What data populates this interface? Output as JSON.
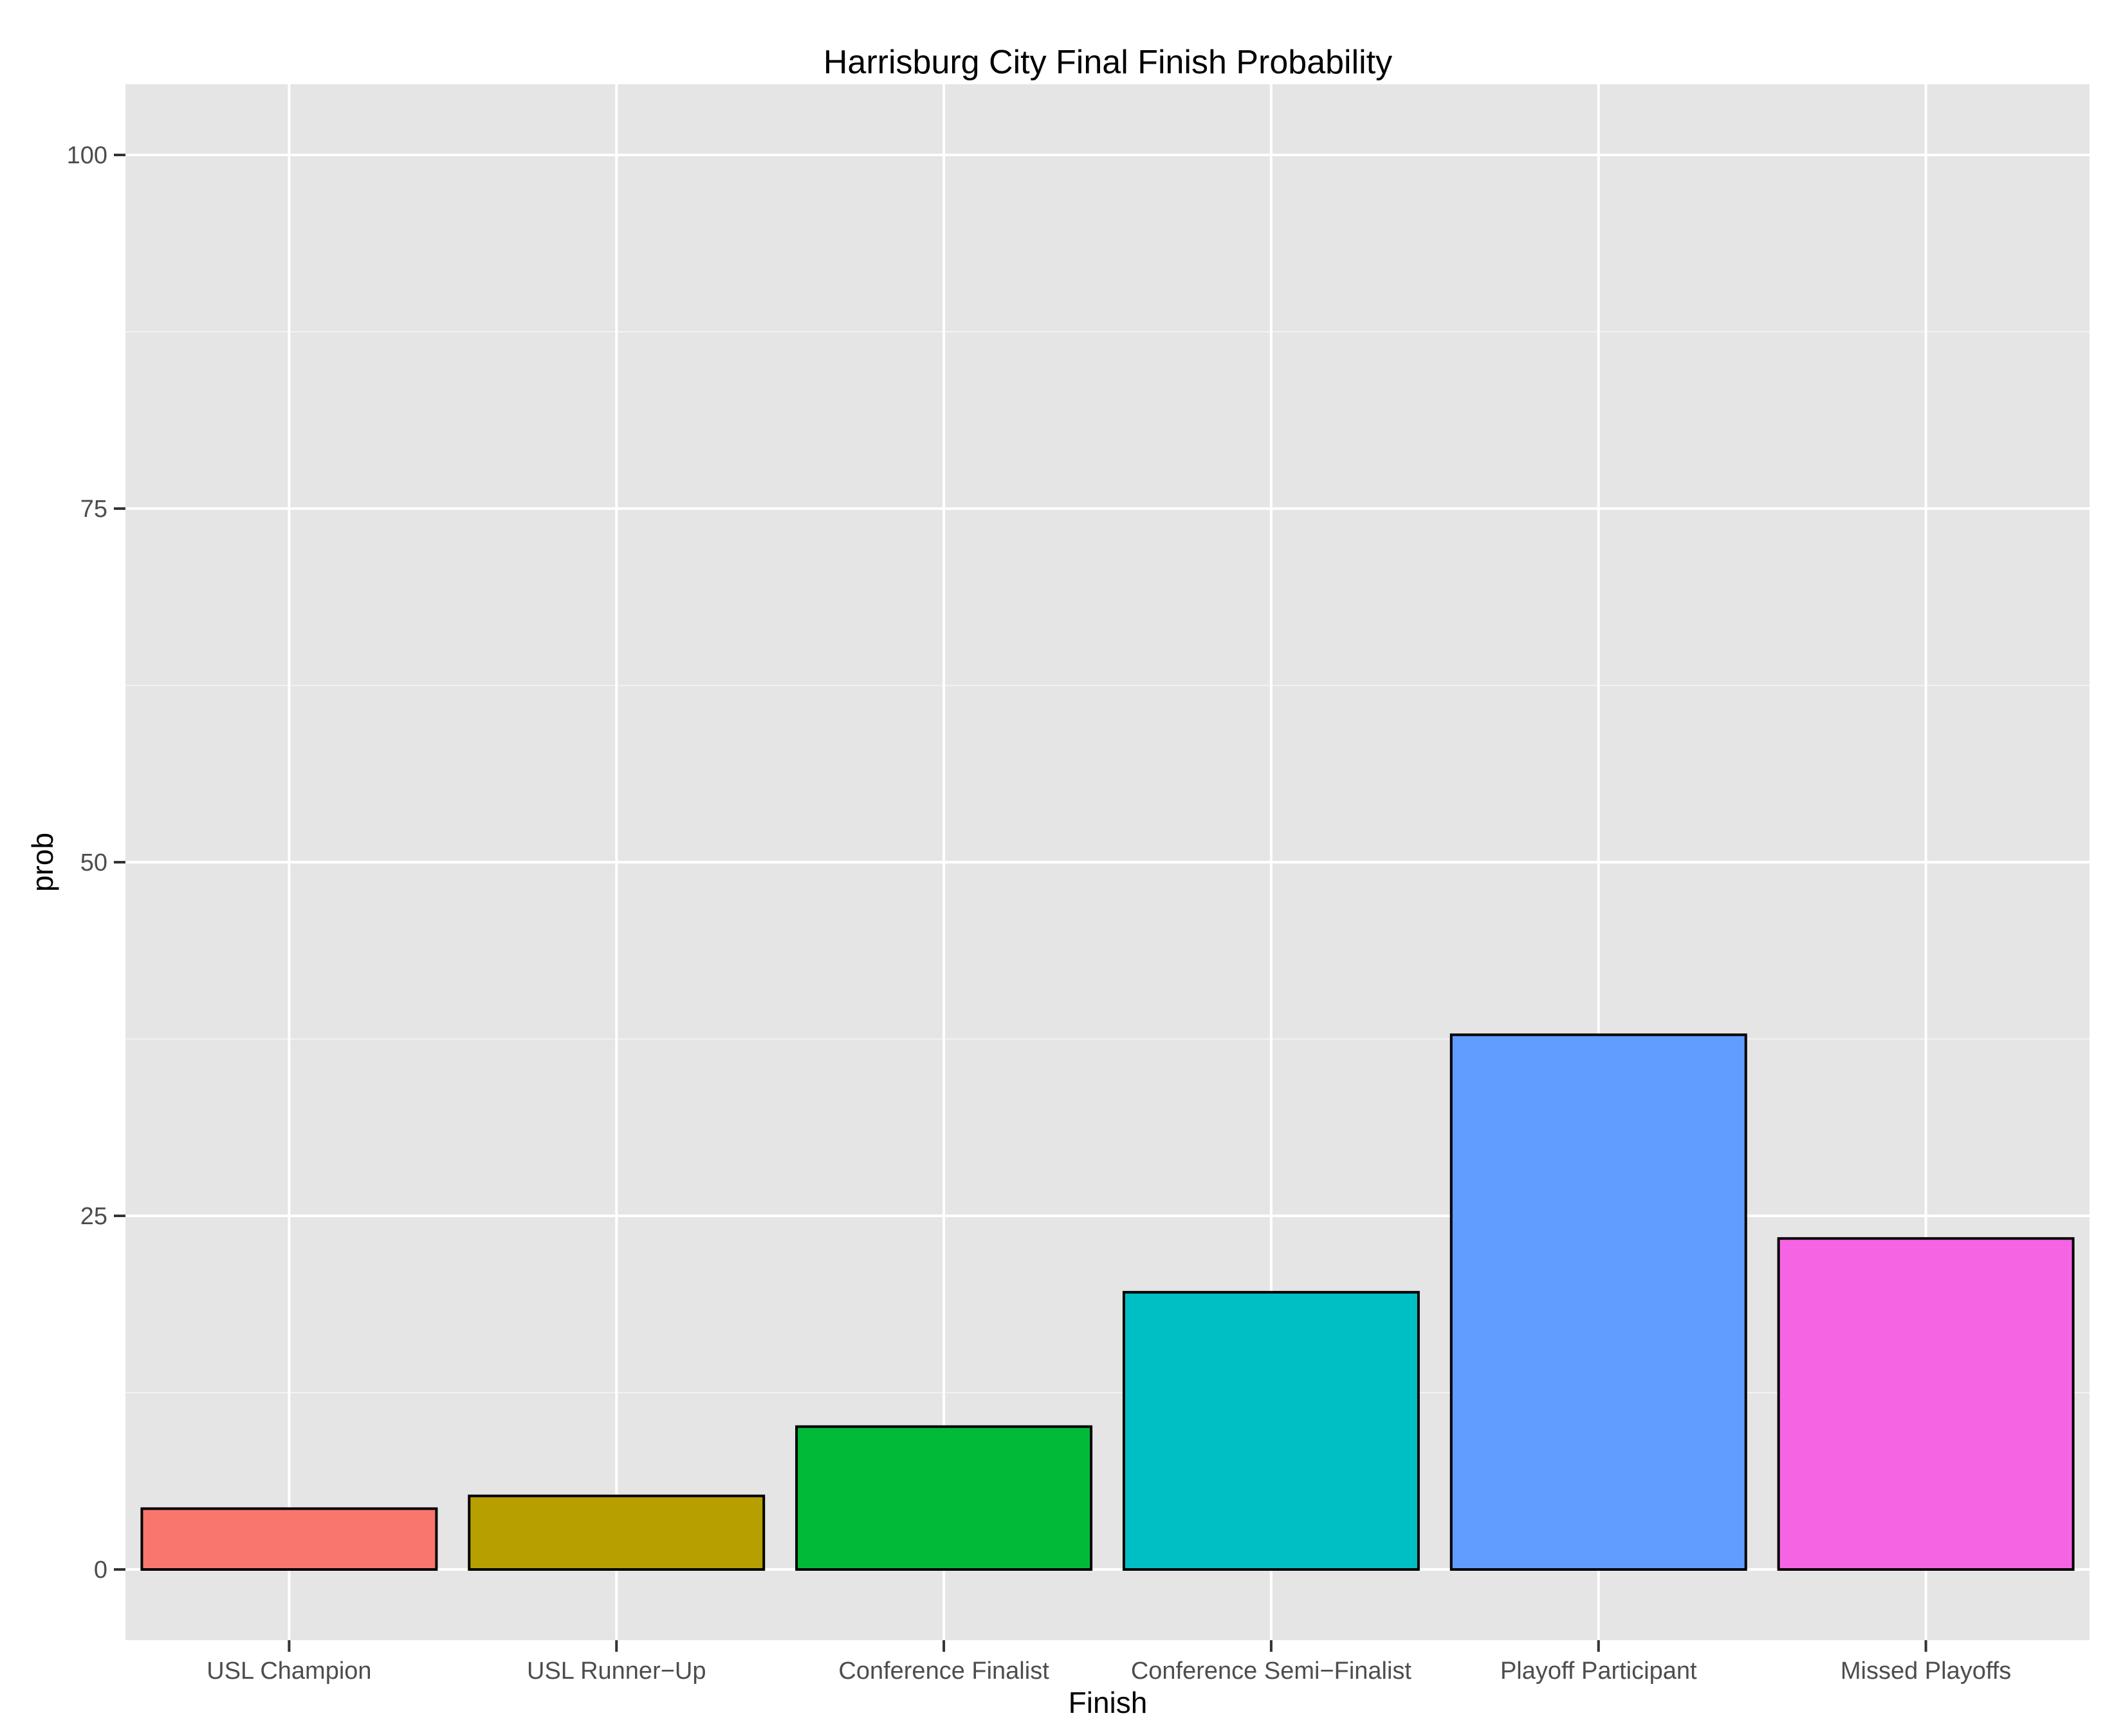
{
  "chart_data": {
    "type": "bar",
    "title": "Harrisburg City Final Finish Probability",
    "xlabel": "Finish",
    "ylabel": "prob",
    "categories": [
      "USL Champion",
      "USL Runner−Up",
      "Conference Finalist",
      "Conference Semi−Finalist",
      "Playoff Participant",
      "Missed Playoffs"
    ],
    "values": [
      4.3,
      5.2,
      10.1,
      19.6,
      37.8,
      23.4
    ],
    "colors": [
      "#F8766D",
      "#B79F00",
      "#00BA38",
      "#00BFC4",
      "#619CFF",
      "#F564E3"
    ],
    "ylim": [
      -5,
      105
    ],
    "yticks": [
      0,
      25,
      50,
      75,
      100
    ],
    "grid": true,
    "panel_background": "#E5E5E5"
  }
}
